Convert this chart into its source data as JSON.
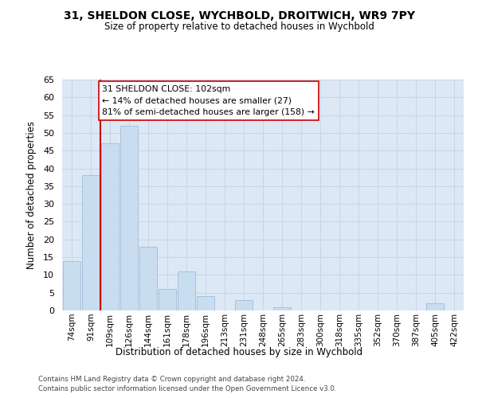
{
  "title1": "31, SHELDON CLOSE, WYCHBOLD, DROITWICH, WR9 7PY",
  "title2": "Size of property relative to detached houses in Wychbold",
  "xlabel": "Distribution of detached houses by size in Wychbold",
  "ylabel": "Number of detached properties",
  "bar_labels": [
    "74sqm",
    "91sqm",
    "109sqm",
    "126sqm",
    "144sqm",
    "161sqm",
    "178sqm",
    "196sqm",
    "213sqm",
    "231sqm",
    "248sqm",
    "265sqm",
    "283sqm",
    "300sqm",
    "318sqm",
    "335sqm",
    "352sqm",
    "370sqm",
    "387sqm",
    "405sqm",
    "422sqm"
  ],
  "bar_values": [
    14,
    38,
    47,
    52,
    18,
    6,
    11,
    4,
    0,
    3,
    0,
    1,
    0,
    0,
    0,
    0,
    0,
    0,
    0,
    2,
    0
  ],
  "bar_color": "#c9ddf0",
  "bar_edge_color": "#a0bbda",
  "grid_color": "#c8d4e8",
  "bg_color": "#dde8f5",
  "vline_color": "#cc0000",
  "vline_x": 1.5,
  "annotation_text": "31 SHELDON CLOSE: 102sqm\n← 14% of detached houses are smaller (27)\n81% of semi-detached houses are larger (158) →",
  "annotation_box_facecolor": "#ffffff",
  "annotation_box_edgecolor": "#cc0000",
  "ylim_max": 65,
  "yticks": [
    0,
    5,
    10,
    15,
    20,
    25,
    30,
    35,
    40,
    45,
    50,
    55,
    60,
    65
  ],
  "footer1": "Contains HM Land Registry data © Crown copyright and database right 2024.",
  "footer2": "Contains public sector information licensed under the Open Government Licence v3.0.",
  "fig_width": 6.0,
  "fig_height": 5.0,
  "dpi": 100
}
